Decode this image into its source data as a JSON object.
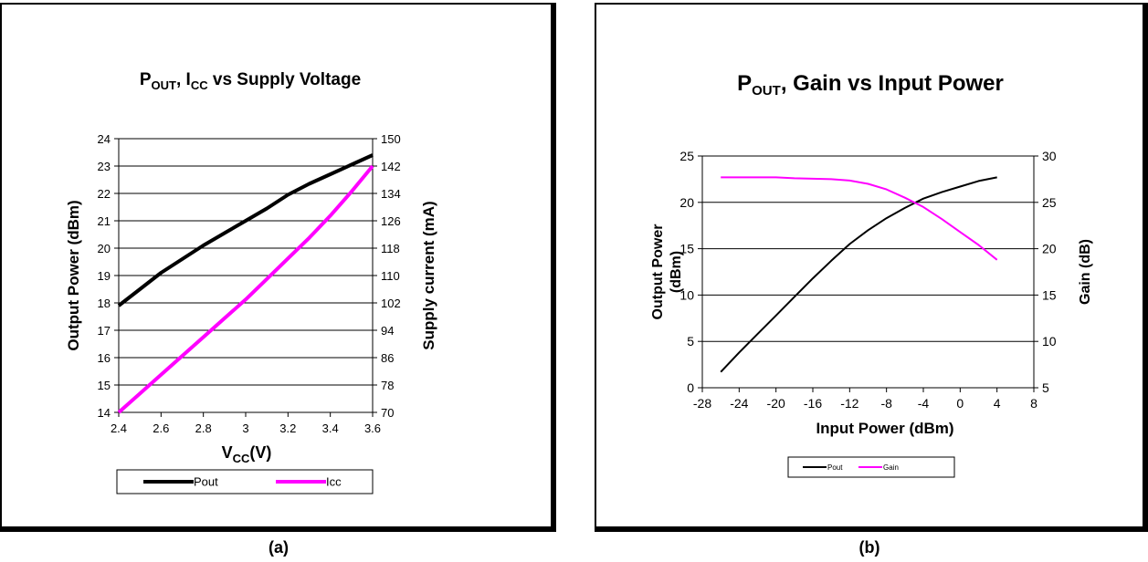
{
  "chart_data": [
    {
      "type": "line",
      "title": {
        "main": "P",
        "sub1": "OUT",
        "mid": ", I",
        "sub2": "CC",
        "end": " vs Supply Voltage"
      },
      "xlabel": {
        "main": "V",
        "sub": "CC",
        "end": "(V)"
      },
      "ylabel": "Output Power (dBm)",
      "y2label": "Supply current (mA)",
      "xlim": [
        2.4,
        3.6
      ],
      "ylim": [
        14,
        24
      ],
      "y2lim": [
        70,
        150
      ],
      "xticks": [
        "2.4",
        "2.6",
        "2.8",
        "3",
        "3.2",
        "3.4",
        "3.6"
      ],
      "yticks": [
        "14",
        "15",
        "16",
        "17",
        "18",
        "19",
        "20",
        "21",
        "22",
        "23",
        "24"
      ],
      "y2ticks": [
        "70",
        "78",
        "86",
        "94",
        "102",
        "110",
        "118",
        "126",
        "134",
        "142",
        "150"
      ],
      "grid": "horizontal",
      "legend_position": "bottom",
      "series": [
        {
          "name": "Pout",
          "axis": "left",
          "color": "#000000",
          "x": [
            2.4,
            2.5,
            2.6,
            2.7,
            2.8,
            2.9,
            3.0,
            3.1,
            3.2,
            3.3,
            3.4,
            3.5,
            3.6
          ],
          "values": [
            17.9,
            18.5,
            19.1,
            19.6,
            20.1,
            20.55,
            21.0,
            21.45,
            21.95,
            22.35,
            22.7,
            23.05,
            23.4
          ]
        },
        {
          "name": "Icc",
          "axis": "right",
          "color": "#ff00ff",
          "x": [
            2.4,
            2.5,
            2.6,
            2.7,
            2.8,
            2.9,
            3.0,
            3.1,
            3.2,
            3.3,
            3.4,
            3.5,
            3.6
          ],
          "values": [
            70,
            75.5,
            81,
            86.5,
            92,
            97.5,
            103,
            109,
            115,
            121,
            127.5,
            134.5,
            142
          ]
        }
      ]
    },
    {
      "type": "line",
      "title": {
        "main": "P",
        "sub1": "OUT",
        "mid": ", Gain vs Input Power",
        "sub2": "",
        "end": ""
      },
      "xlabel": {
        "main": "Input Power (dBm)",
        "sub": "",
        "end": ""
      },
      "ylabel": "Output Power (dBm)",
      "y2label": "Gain (dB)",
      "xlim": [
        -28,
        8
      ],
      "ylim": [
        0,
        25
      ],
      "y2lim": [
        5,
        30
      ],
      "xticks": [
        "-28",
        "-24",
        "-20",
        "-16",
        "-12",
        "-8",
        "-4",
        "0",
        "4",
        "8"
      ],
      "yticks": [
        "0",
        "5",
        "10",
        "15",
        "20",
        "25"
      ],
      "y2ticks": [
        "5",
        "10",
        "15",
        "20",
        "25",
        "30"
      ],
      "grid": "horizontal",
      "legend_position": "bottom",
      "series": [
        {
          "name": "Pout",
          "axis": "left",
          "color": "#000000",
          "x": [
            -26,
            -24,
            -22,
            -20,
            -18,
            -16,
            -14,
            -12,
            -10,
            -8,
            -6,
            -4,
            -2,
            0,
            2,
            4
          ],
          "values": [
            1.7,
            3.8,
            5.8,
            7.8,
            9.8,
            11.8,
            13.7,
            15.5,
            17.0,
            18.3,
            19.4,
            20.4,
            21.1,
            21.7,
            22.3,
            22.7
          ]
        },
        {
          "name": "Gain",
          "axis": "right",
          "color": "#ff00ff",
          "x": [
            -26,
            -24,
            -22,
            -20,
            -18,
            -16,
            -14,
            -12,
            -10,
            -8,
            -6,
            -4,
            -2,
            0,
            2,
            4
          ],
          "values": [
            27.7,
            27.7,
            27.7,
            27.7,
            27.6,
            27.55,
            27.5,
            27.35,
            27.0,
            26.4,
            25.5,
            24.5,
            23.2,
            21.8,
            20.4,
            18.8
          ]
        }
      ]
    }
  ],
  "captions": {
    "a": "(a)",
    "b": "(b)"
  }
}
